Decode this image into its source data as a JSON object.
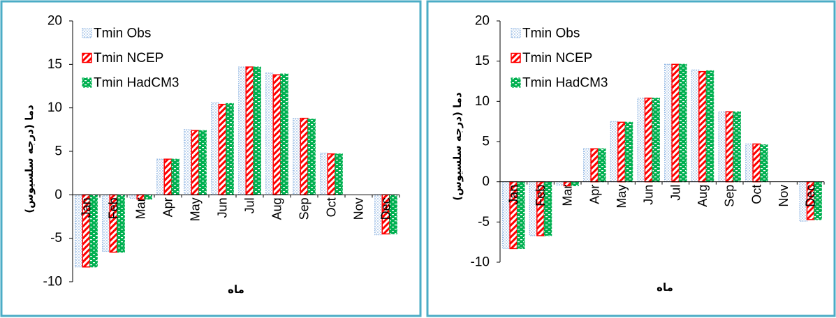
{
  "chart_data": [
    {
      "type": "bar",
      "title": "",
      "xlabel": "ماه",
      "ylabel": "دما (درجه سلسیوس)",
      "categories": [
        "Jan",
        "Feb",
        "Mar",
        "Apr",
        "May",
        "Jun",
        "Jul",
        "Aug",
        "Sep",
        "Oct",
        "Nov",
        "Dec"
      ],
      "series": [
        {
          "name": "Tmin Obs",
          "values": [
            -8.3,
            -6.5,
            -0.4,
            4.1,
            7.5,
            10.6,
            14.7,
            14.0,
            8.8,
            4.8,
            0,
            -4.6
          ]
        },
        {
          "name": "Tmin NCEP",
          "values": [
            -8.3,
            -6.6,
            -0.5,
            4.1,
            7.4,
            10.4,
            14.7,
            13.8,
            8.8,
            4.7,
            0,
            -4.5
          ]
        },
        {
          "name": "Tmin HadCM3",
          "values": [
            -8.3,
            -6.6,
            -0.5,
            4.1,
            7.4,
            10.5,
            14.7,
            13.9,
            8.7,
            4.7,
            0,
            -4.5
          ]
        }
      ],
      "ylim": [
        -10,
        20
      ],
      "yticks": [
        "20",
        "15",
        "10",
        "5",
        "0",
        "-5",
        "-10"
      ],
      "grid": false,
      "legend": "top-left"
    },
    {
      "type": "bar",
      "title": "",
      "xlabel": "ماه",
      "ylabel": "دما (درجه سلسیوس)",
      "categories": [
        "Jan",
        "Feb",
        "Mar",
        "Apr",
        "May",
        "Jun",
        "Jul",
        "Aug",
        "Sep",
        "Oct",
        "Nov",
        "Dec"
      ],
      "series": [
        {
          "name": "Tmin Obs",
          "values": [
            -8.3,
            -6.7,
            -0.4,
            4.1,
            7.5,
            10.4,
            14.6,
            13.9,
            8.7,
            4.7,
            0,
            -4.9
          ]
        },
        {
          "name": "Tmin NCEP",
          "values": [
            -8.3,
            -6.7,
            -0.5,
            4.1,
            7.4,
            10.4,
            14.6,
            13.7,
            8.7,
            4.7,
            0,
            -4.7
          ]
        },
        {
          "name": "Tmin HadCM3",
          "values": [
            -8.3,
            -6.7,
            -0.5,
            4.1,
            7.4,
            10.4,
            14.6,
            13.8,
            8.7,
            4.6,
            0,
            -4.7
          ]
        }
      ],
      "ylim": [
        -10,
        20
      ],
      "yticks": [
        "20",
        "15",
        "10",
        "5",
        "0",
        "-5",
        "-10"
      ],
      "grid": false,
      "legend": "top-left"
    }
  ],
  "colors": {
    "frame": "#4BACC6",
    "obs": "#8DB4E2",
    "ncep": "#FF0000",
    "hadcm3": "#00B050",
    "axis": "#000000"
  }
}
